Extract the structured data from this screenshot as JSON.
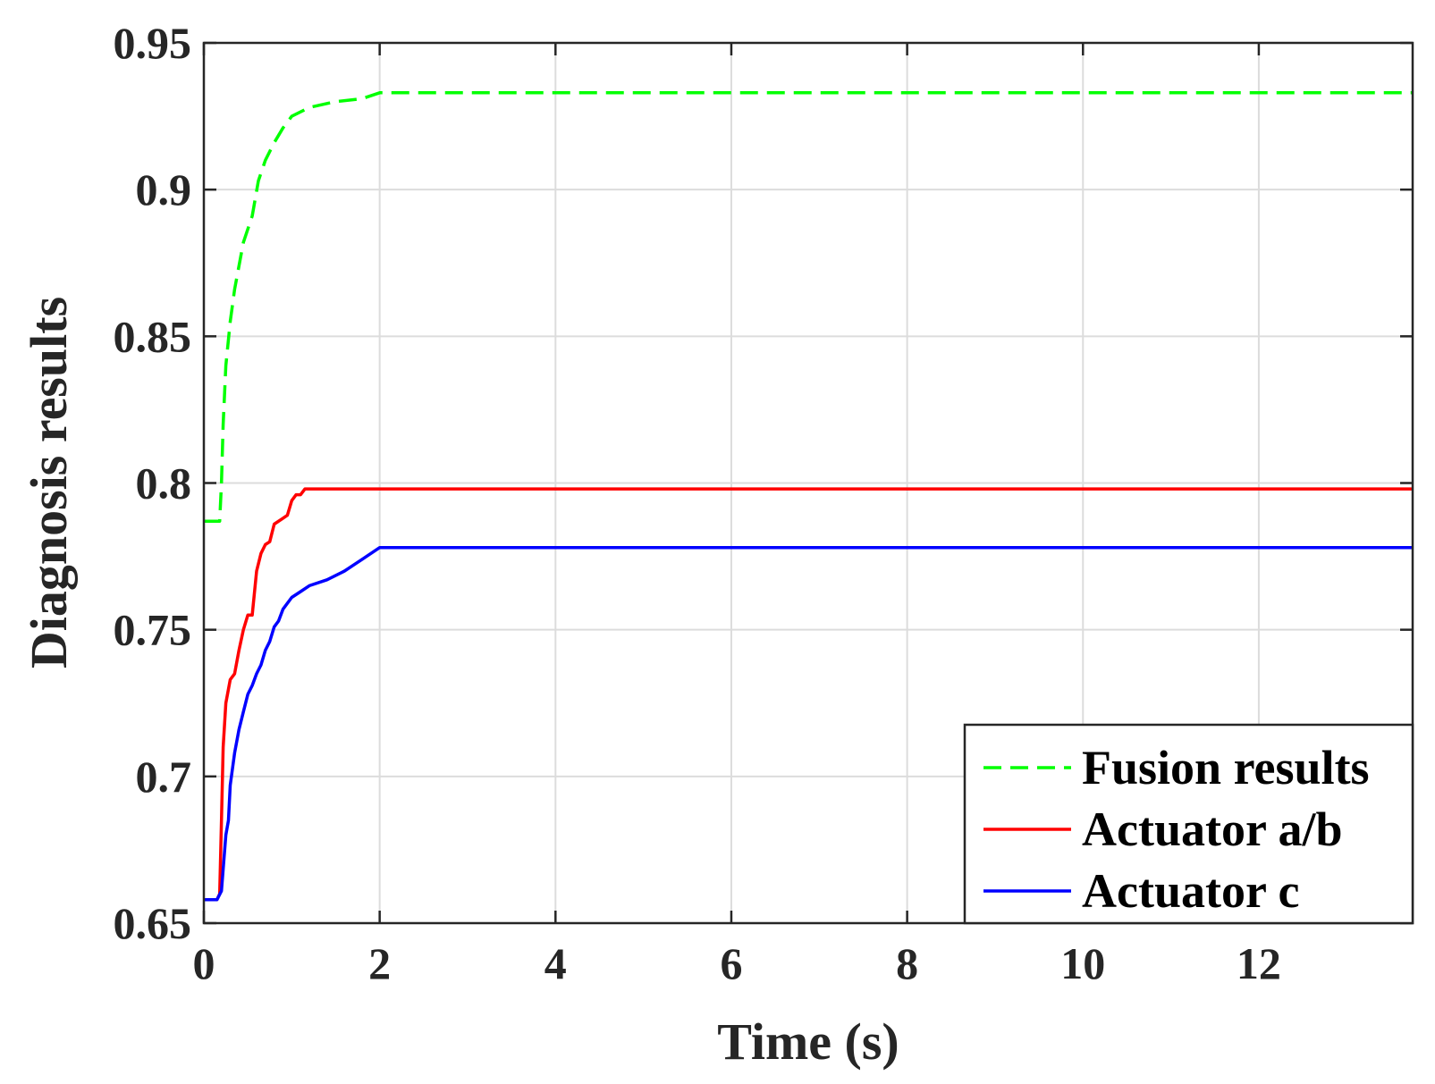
{
  "chart_data": {
    "type": "line",
    "xlabel": "Time (s)",
    "ylabel": "Diagnosis results",
    "xlim": [
      0,
      13.75
    ],
    "ylim": [
      0.65,
      0.95
    ],
    "x_ticks": [
      "0",
      "2",
      "4",
      "6",
      "8",
      "10",
      "12"
    ],
    "x_tick_values": [
      0,
      2,
      4,
      6,
      8,
      10,
      12
    ],
    "y_ticks": [
      "0.65",
      "0.7",
      "0.75",
      "0.8",
      "0.85",
      "0.9",
      "0.95"
    ],
    "y_tick_values": [
      0.65,
      0.7,
      0.75,
      0.8,
      0.85,
      0.9,
      0.95
    ],
    "grid": true,
    "legend_position": "bottom-right",
    "series": [
      {
        "name": "Fusion results",
        "color": "#00ff00",
        "style": "dashed",
        "x": [
          0,
          0.18,
          0.2,
          0.22,
          0.25,
          0.3,
          0.35,
          0.45,
          0.55,
          0.62,
          0.7,
          0.8,
          0.9,
          1.0,
          1.2,
          1.5,
          1.8,
          2.0,
          13.75
        ],
        "y": [
          0.787,
          0.787,
          0.8,
          0.82,
          0.84,
          0.855,
          0.866,
          0.882,
          0.891,
          0.903,
          0.91,
          0.916,
          0.921,
          0.925,
          0.928,
          0.93,
          0.931,
          0.933,
          0.933
        ]
      },
      {
        "name": "Actuator a/b",
        "color": "#ff0000",
        "style": "solid",
        "x": [
          0,
          0.15,
          0.18,
          0.2,
          0.22,
          0.25,
          0.3,
          0.35,
          0.4,
          0.45,
          0.5,
          0.55,
          0.6,
          0.65,
          0.7,
          0.75,
          0.8,
          0.9,
          0.95,
          1.0,
          1.05,
          1.1,
          1.15,
          13.75
        ],
        "y": [
          0.658,
          0.658,
          0.66,
          0.685,
          0.71,
          0.725,
          0.733,
          0.735,
          0.743,
          0.75,
          0.755,
          0.755,
          0.77,
          0.776,
          0.779,
          0.78,
          0.786,
          0.788,
          0.789,
          0.794,
          0.796,
          0.796,
          0.798,
          0.798
        ]
      },
      {
        "name": "Actuator c",
        "color": "#0000ff",
        "style": "solid",
        "x": [
          0,
          0.15,
          0.2,
          0.25,
          0.28,
          0.3,
          0.35,
          0.4,
          0.45,
          0.5,
          0.55,
          0.6,
          0.65,
          0.7,
          0.75,
          0.8,
          0.85,
          0.9,
          1.0,
          1.1,
          1.2,
          1.4,
          1.6,
          1.8,
          2.0,
          13.75
        ],
        "y": [
          0.658,
          0.658,
          0.661,
          0.68,
          0.685,
          0.697,
          0.708,
          0.716,
          0.722,
          0.728,
          0.731,
          0.735,
          0.738,
          0.743,
          0.746,
          0.751,
          0.753,
          0.757,
          0.761,
          0.763,
          0.765,
          0.767,
          0.77,
          0.774,
          0.778,
          0.778
        ]
      }
    ]
  }
}
